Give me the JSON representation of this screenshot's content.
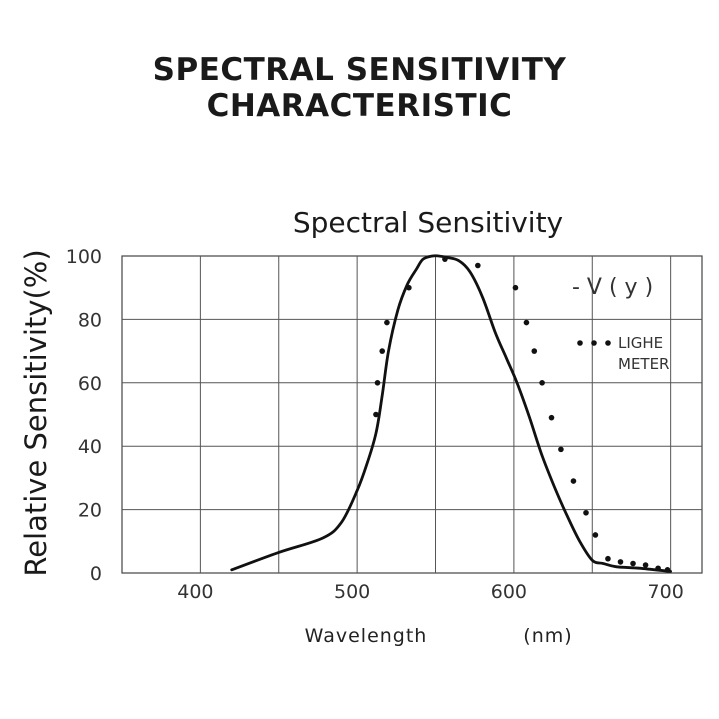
{
  "page": {
    "title_line1": "SPECTRAL SENSITIVITY",
    "title_line2": "CHARACTERISTIC"
  },
  "chart_data": {
    "type": "line",
    "title": "Spectral Sensitivity",
    "xlabel": "Wavelength",
    "xunit": "(nm)",
    "ylabel": "Relative Sensitivity(%)",
    "xlim": [
      350,
      720
    ],
    "ylim": [
      0,
      100
    ],
    "xticks": [
      400,
      500,
      600,
      700
    ],
    "yticks": [
      0,
      20,
      40,
      60,
      80,
      100
    ],
    "grid": true,
    "legend_position": "top-right",
    "series": [
      {
        "name": "- V ( y )",
        "style": "solid",
        "color": "#111111",
        "x": [
          420,
          450,
          478,
          490,
          500,
          506,
          512,
          516,
          520,
          526,
          532,
          538,
          542,
          548,
          552,
          558,
          565,
          572,
          580,
          588,
          595,
          602,
          610,
          618,
          626,
          634,
          642,
          650,
          657,
          665,
          680,
          700
        ],
        "y": [
          1,
          6.5,
          11,
          16,
          26,
          34,
          44,
          56,
          70,
          83,
          91,
          96,
          99,
          100,
          100,
          99.5,
          98.5,
          95,
          87,
          76,
          68,
          60,
          49,
          37,
          27,
          18,
          10,
          4,
          3,
          2,
          1.5,
          0.5
        ]
      },
      {
        "name": "LIGHE METER",
        "style": "dotted",
        "color": "#111111",
        "x": [
          512,
          513,
          516,
          519,
          533,
          556,
          577,
          601,
          608,
          613,
          618,
          624,
          630,
          638,
          646,
          652,
          660,
          668,
          676,
          684,
          692,
          698
        ],
        "y": [
          50,
          60,
          70,
          79,
          90,
          99,
          97,
          90,
          79,
          70,
          60,
          49,
          39,
          29,
          19,
          12,
          4.5,
          3.5,
          3,
          2.5,
          1.5,
          1
        ]
      }
    ],
    "legend": {
      "line_label": "- V ( y )",
      "dots_label_line1": "LIGHE",
      "dots_label_line2": "METER"
    }
  }
}
